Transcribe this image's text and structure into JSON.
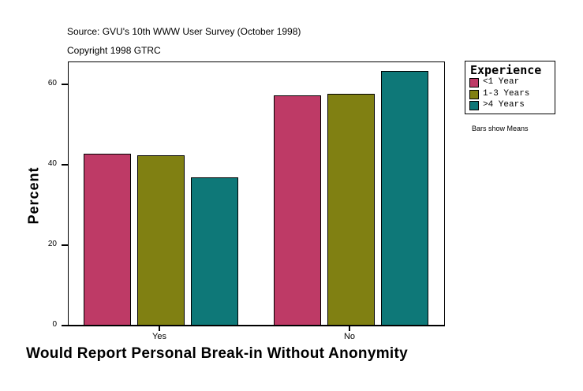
{
  "header": {
    "source": "Source: GVU's 10th WWW User Survey (October 1998)",
    "copyright": "Copyright 1998 GTRC"
  },
  "legend": {
    "title": "Experience",
    "items": [
      {
        "label": "<1 Year",
        "color": "#be3a66"
      },
      {
        "label": "1-3 Years",
        "color": "#808012"
      },
      {
        "label": ">4 Years",
        "color": "#0e7878"
      }
    ]
  },
  "note": "Bars show Means",
  "axes": {
    "ylabel": "Percent",
    "xtitle": "Would Report Personal Break-in Without Anonymity",
    "yticks": [
      "0",
      "20",
      "40",
      "60"
    ],
    "xcats": [
      "Yes",
      "No"
    ]
  },
  "chart_data": {
    "type": "bar",
    "title": "Would Report Personal Break-in Without Anonymity",
    "subtitle": "Source: GVU's 10th WWW User Survey (October 1998); Copyright 1998 GTRC",
    "categories": [
      "Yes",
      "No"
    ],
    "series": [
      {
        "name": "<1 Year",
        "color": "#be3a66",
        "values": [
          42.7,
          57.2
        ]
      },
      {
        "name": "1-3 Years",
        "color": "#808012",
        "values": [
          42.3,
          57.6
        ]
      },
      {
        "name": ">4 Years",
        "color": "#0e7878",
        "values": [
          36.8,
          63.3
        ]
      }
    ],
    "xlabel": "Would Report Personal Break-in Without Anonymity",
    "ylabel": "Percent",
    "ylim": [
      0,
      65.7
    ],
    "yticks": [
      0,
      20,
      40,
      60
    ],
    "grid": false,
    "legend_position": "right",
    "legend_title": "Experience",
    "annotations": [
      "Bars show Means"
    ]
  }
}
